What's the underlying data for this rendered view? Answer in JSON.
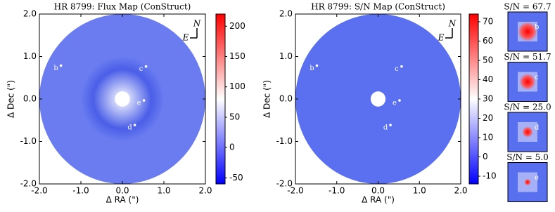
{
  "chart_data": [
    {
      "type": "image",
      "title": "HR 8799: Flux Map (ConStruct)",
      "x_label": "Δ RA (\")",
      "y_label": "Δ Dec (\")",
      "xlim": [
        -2.0,
        2.0
      ],
      "ylim": [
        -2.0,
        2.0
      ],
      "xticks": [
        {
          "value": -2,
          "label": "-2.0"
        },
        {
          "value": -1,
          "label": "-1.0"
        },
        {
          "value": 0,
          "label": "0.0"
        },
        {
          "value": 1,
          "label": "1.0"
        },
        {
          "value": 2,
          "label": "2.0"
        }
      ],
      "yticks": [
        {
          "value": 2,
          "label": "2.0"
        },
        {
          "value": 1,
          "label": "1.0"
        },
        {
          "value": 0,
          "label": "0.0"
        },
        {
          "value": -1,
          "label": "-1.0"
        },
        {
          "value": -2,
          "label": "-2.0"
        }
      ],
      "clim": [
        -60,
        220
      ],
      "cticks": [
        -50,
        0,
        50,
        100,
        150,
        200
      ],
      "colormap": [
        "#0000ff",
        "#ffffff",
        "#ff0000"
      ],
      "annotations": [
        {
          "text": "b",
          "x": -1.6,
          "y": 0.72
        },
        {
          "text": "c",
          "x": 0.45,
          "y": 0.7
        },
        {
          "text": "e",
          "x": 0.4,
          "y": -0.1
        },
        {
          "text": "d",
          "x": 0.18,
          "y": -0.68
        }
      ],
      "compass": [
        "N",
        "E"
      ]
    },
    {
      "type": "image",
      "title": "HR 8799: S/N Map (ConStruct)",
      "x_label": "Δ RA (\")",
      "y_label": "Δ Dec (\")",
      "xlim": [
        -2.0,
        2.0
      ],
      "ylim": [
        -2.0,
        2.0
      ],
      "xticks": [
        {
          "value": -2,
          "label": "-2.0"
        },
        {
          "value": -1,
          "label": "-1.0"
        },
        {
          "value": 0,
          "label": "0.0"
        },
        {
          "value": 1,
          "label": "1.0"
        },
        {
          "value": 2,
          "label": "2.0"
        }
      ],
      "yticks": [
        {
          "value": 2,
          "label": "2.0"
        },
        {
          "value": 1,
          "label": "1.0"
        },
        {
          "value": 0,
          "label": "0.0"
        },
        {
          "value": -1,
          "label": "-1.0"
        },
        {
          "value": -2,
          "label": "-2.0"
        }
      ],
      "clim": [
        -14,
        74
      ],
      "cticks": [
        -10,
        0,
        10,
        20,
        30,
        40,
        50,
        60,
        70
      ],
      "colormap": [
        "#0000ff",
        "#ffffff",
        "#ff0000"
      ],
      "annotations": [
        {
          "text": "b",
          "x": -1.6,
          "y": 0.72
        },
        {
          "text": "c",
          "x": 0.45,
          "y": 0.7
        },
        {
          "text": "e",
          "x": 0.4,
          "y": -0.1
        },
        {
          "text": "d",
          "x": 0.18,
          "y": -0.68
        }
      ],
      "compass": [
        "N",
        "E"
      ]
    },
    {
      "type": "thumbnails",
      "categories": [
        "b",
        "c",
        "d",
        "e"
      ],
      "values": [
        67.7,
        51.7,
        25.0,
        5.0
      ],
      "value_labels": [
        "S/N = 67.7",
        "S/N = 51.7",
        "S/N = 25.0",
        "S/N = 5.0"
      ]
    }
  ]
}
